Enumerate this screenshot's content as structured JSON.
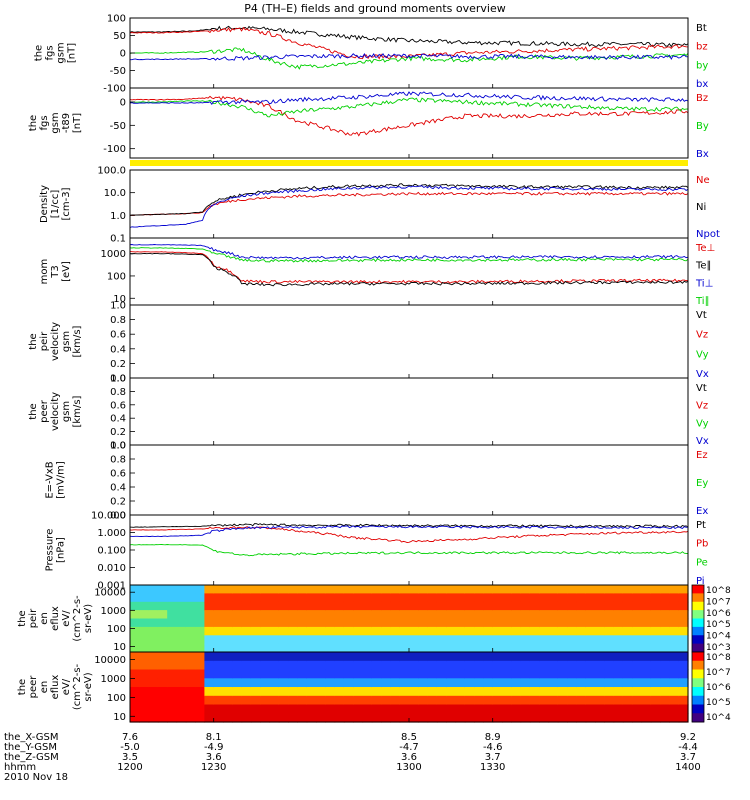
{
  "chart_data": {
    "type": "line",
    "title": "P4 (TH–E) fields and ground moments overview",
    "panels": [
      {
        "id": "fgs",
        "ylabel": [
          "the",
          "fgs",
          "gsm",
          "[nT]"
        ],
        "ticks": [
          "100",
          "50",
          "0",
          "-50",
          "-100"
        ],
        "ylim": [
          -100,
          100
        ],
        "log": false,
        "series": [
          {
            "name": "Bt",
            "color": "#000000",
            "x": [
              1200,
              1210,
              1220,
              1226,
              1230,
              1240,
              1250,
              1260,
              1280,
              1300,
              1320,
              1340,
              1360,
              1380,
              1400
            ],
            "y": [
              60,
              60,
              62,
              65,
              70,
              72,
              68,
              60,
              45,
              35,
              30,
              28,
              25,
              25,
              22
            ]
          },
          {
            "name": "bz",
            "color": "#e00000",
            "x": [
              1200,
              1210,
              1220,
              1226,
              1230,
              1240,
              1250,
              1260,
              1280,
              1300,
              1320,
              1340,
              1360,
              1380,
              1400
            ],
            "y": [
              58,
              58,
              60,
              62,
              65,
              68,
              55,
              30,
              -10,
              -10,
              0,
              5,
              10,
              15,
              20
            ]
          },
          {
            "name": "by",
            "color": "#00d000",
            "x": [
              1200,
              1210,
              1220,
              1226,
              1230,
              1240,
              1250,
              1260,
              1280,
              1300,
              1320,
              1340,
              1360,
              1380,
              1400
            ],
            "y": [
              0,
              0,
              2,
              3,
              5,
              10,
              -20,
              -40,
              -30,
              -15,
              -20,
              -10,
              -15,
              -10,
              -5
            ]
          },
          {
            "name": "bx",
            "color": "#0000d0",
            "x": [
              1200,
              1210,
              1220,
              1226,
              1230,
              1240,
              1250,
              1260,
              1280,
              1300,
              1320,
              1340,
              1360,
              1380,
              1400
            ],
            "y": [
              -18,
              -18,
              -17,
              -17,
              -16,
              -15,
              -12,
              -10,
              -8,
              -8,
              -10,
              -10,
              -12,
              -12,
              -12
            ]
          }
        ]
      },
      {
        "id": "fgs2",
        "ylabel": [
          "the",
          "fgs",
          "gsm",
          "-t89",
          "[nT]"
        ],
        "ticks": [
          "0",
          "-50",
          "-100"
        ],
        "ylim": [
          -120,
          30
        ],
        "log": false,
        "series": [
          {
            "name": "Bz",
            "color": "#e00000",
            "x": [
              1200,
              1210,
              1220,
              1226,
              1230,
              1240,
              1250,
              1260,
              1280,
              1300,
              1320,
              1340,
              1360,
              1380,
              1400
            ],
            "y": [
              5,
              5,
              6,
              8,
              10,
              5,
              -10,
              -40,
              -70,
              -50,
              -30,
              -30,
              -25,
              -25,
              -20
            ]
          },
          {
            "name": "By",
            "color": "#00d000",
            "x": [
              1200,
              1210,
              1220,
              1226,
              1230,
              1240,
              1250,
              1260,
              1280,
              1300,
              1320,
              1340,
              1360,
              1380,
              1400
            ],
            "y": [
              0,
              0,
              2,
              2,
              0,
              -10,
              -30,
              -20,
              -10,
              5,
              0,
              -5,
              -10,
              -15,
              -15
            ]
          },
          {
            "name": "Bx",
            "color": "#0000d0",
            "x": [
              1200,
              1210,
              1220,
              1226,
              1230,
              1240,
              1250,
              1260,
              1280,
              1300,
              1320,
              1340,
              1360,
              1380,
              1400
            ],
            "y": [
              -2,
              -2,
              -2,
              -2,
              0,
              0,
              0,
              5,
              10,
              18,
              15,
              10,
              8,
              5,
              5
            ]
          }
        ]
      },
      {
        "id": "density",
        "ylabel": [
          "Density",
          "[1/cc]",
          "[cm-3]"
        ],
        "ticks": [
          "100.0",
          "10.0",
          "1.0",
          "0.1"
        ],
        "ylim": [
          0.1,
          100
        ],
        "log": true,
        "series": [
          {
            "name": "Ne",
            "color": "#e00000",
            "x": [
              1200,
              1210,
              1220,
              1226,
              1230,
              1240,
              1250,
              1260,
              1280,
              1300,
              1320,
              1340,
              1360,
              1380,
              1400
            ],
            "y": [
              1,
              1.1,
              1.2,
              1.3,
              3,
              5,
              6,
              7,
              8,
              9,
              9,
              9,
              9,
              9,
              9
            ]
          },
          {
            "name": "Ni",
            "color": "#000000",
            "x": [
              1200,
              1210,
              1220,
              1226,
              1230,
              1240,
              1250,
              1260,
              1280,
              1300,
              1320,
              1340,
              1360,
              1380,
              1400
            ],
            "y": [
              1,
              1.1,
              1.2,
              1.4,
              4,
              8,
              12,
              15,
              20,
              22,
              20,
              18,
              18,
              17,
              17
            ]
          },
          {
            "name": "Npot",
            "color": "#0000d0",
            "x": [
              1200,
              1210,
              1220,
              1226,
              1230,
              1240,
              1250,
              1260,
              1280,
              1300,
              1320,
              1340,
              1360,
              1380,
              1400
            ],
            "y": [
              0.3,
              0.35,
              0.4,
              0.6,
              3,
              7,
              10,
              12,
              16,
              18,
              16,
              15,
              15,
              14,
              14
            ]
          }
        ]
      },
      {
        "id": "temp",
        "ylabel": [
          "mom",
          "T3",
          "[eV]"
        ],
        "ticks": [
          "1000",
          "100",
          "10"
        ],
        "ylim": [
          5,
          5000
        ],
        "log": true,
        "series": [
          {
            "name": "Te⊥",
            "color": "#e00000",
            "x": [
              1200,
              1210,
              1220,
              1226,
              1230,
              1240,
              1250,
              1260,
              1280,
              1300,
              1320,
              1340,
              1360,
              1380,
              1400
            ],
            "y": [
              1200,
              1200,
              1100,
              1000,
              300,
              60,
              55,
              55,
              55,
              55,
              55,
              58,
              60,
              62,
              62
            ]
          },
          {
            "name": "Te∥",
            "color": "#000000",
            "x": [
              1200,
              1210,
              1220,
              1226,
              1230,
              1240,
              1250,
              1260,
              1280,
              1300,
              1320,
              1340,
              1360,
              1380,
              1400
            ],
            "y": [
              1000,
              1000,
              950,
              900,
              250,
              45,
              40,
              42,
              45,
              45,
              45,
              47,
              50,
              52,
              52
            ]
          },
          {
            "name": "Ti⊥",
            "color": "#0000d0",
            "x": [
              1200,
              1210,
              1220,
              1226,
              1230,
              1240,
              1250,
              1260,
              1280,
              1300,
              1320,
              1340,
              1360,
              1380,
              1400
            ],
            "y": [
              2500,
              2500,
              2400,
              2300,
              1500,
              700,
              650,
              650,
              680,
              700,
              700,
              700,
              720,
              720,
              720
            ]
          },
          {
            "name": "Ti∥",
            "color": "#00d000",
            "x": [
              1200,
              1210,
              1220,
              1226,
              1230,
              1240,
              1250,
              1260,
              1280,
              1300,
              1320,
              1340,
              1360,
              1380,
              1400
            ],
            "y": [
              1800,
              1800,
              1700,
              1600,
              1000,
              500,
              480,
              480,
              500,
              520,
              520,
              520,
              540,
              540,
              540
            ]
          }
        ]
      },
      {
        "id": "peir",
        "ylabel": [
          "the",
          "peir",
          "velocity",
          "gsm",
          "[km/s]"
        ],
        "ticks": [
          "1.0",
          "0.8",
          "0.6",
          "0.4",
          "0.2",
          "0.0"
        ],
        "ylim": [
          0,
          1
        ],
        "log": false,
        "series": [
          {
            "name": "Vt",
            "color": "#000000",
            "x": [],
            "y": []
          },
          {
            "name": "Vz",
            "color": "#e00000",
            "x": [],
            "y": []
          },
          {
            "name": "Vy",
            "color": "#00d000",
            "x": [],
            "y": []
          },
          {
            "name": "Vx",
            "color": "#0000d0",
            "x": [],
            "y": []
          }
        ]
      },
      {
        "id": "peer",
        "ylabel": [
          "the",
          "peer",
          "velocity",
          "gsm",
          "[km/s]"
        ],
        "ticks": [
          "1.0",
          "0.8",
          "0.6",
          "0.4",
          "0.2",
          "0.0"
        ],
        "ylim": [
          0,
          1
        ],
        "log": false,
        "series": [
          {
            "name": "Vt",
            "color": "#000000",
            "x": [],
            "y": []
          },
          {
            "name": "Vz",
            "color": "#e00000",
            "x": [],
            "y": []
          },
          {
            "name": "Vy",
            "color": "#00d000",
            "x": [],
            "y": []
          },
          {
            "name": "Vx",
            "color": "#0000d0",
            "x": [],
            "y": []
          }
        ]
      },
      {
        "id": "efield",
        "ylabel": [
          "E=-VxB",
          "[mV/m]"
        ],
        "ticks": [
          "1.0",
          "0.8",
          "0.6",
          "0.4",
          "0.2",
          "0.0"
        ],
        "ylim": [
          0,
          1
        ],
        "log": false,
        "series": [
          {
            "name": "Ez",
            "color": "#e00000",
            "x": [],
            "y": []
          },
          {
            "name": "Ey",
            "color": "#00d000",
            "x": [],
            "y": []
          },
          {
            "name": "Ex",
            "color": "#0000d0",
            "x": [],
            "y": []
          }
        ]
      },
      {
        "id": "pressure",
        "ylabel": [
          "Pressure",
          "[nPa]"
        ],
        "ticks": [
          "10.000",
          "1.000",
          "0.100",
          "0.010",
          "0.001"
        ],
        "ylim": [
          0.001,
          10
        ],
        "log": true,
        "series": [
          {
            "name": "Pt",
            "color": "#000000",
            "x": [
              1200,
              1210,
              1220,
              1226,
              1230,
              1240,
              1250,
              1260,
              1280,
              1300,
              1320,
              1340,
              1360,
              1380,
              1400
            ],
            "y": [
              2,
              2.1,
              2.2,
              2.3,
              2.5,
              2.8,
              2.8,
              2.6,
              2.6,
              2.5,
              2.4,
              2.4,
              2.3,
              2.3,
              2.3
            ]
          },
          {
            "name": "Pb",
            "color": "#e00000",
            "x": [
              1200,
              1210,
              1220,
              1226,
              1230,
              1240,
              1250,
              1260,
              1280,
              1300,
              1320,
              1340,
              1360,
              1380,
              1400
            ],
            "y": [
              1.4,
              1.4,
              1.5,
              1.6,
              1.8,
              2,
              1.8,
              1.2,
              0.5,
              0.3,
              0.4,
              0.6,
              0.8,
              1.0,
              1.1
            ]
          },
          {
            "name": "Pe",
            "color": "#00d000",
            "x": [
              1200,
              1210,
              1220,
              1226,
              1230,
              1240,
              1250,
              1260,
              1280,
              1300,
              1320,
              1340,
              1360,
              1380,
              1400
            ],
            "y": [
              0.2,
              0.2,
              0.2,
              0.19,
              0.09,
              0.05,
              0.055,
              0.06,
              0.065,
              0.07,
              0.07,
              0.07,
              0.07,
              0.07,
              0.07
            ]
          },
          {
            "name": "Pi",
            "color": "#0000d0",
            "x": [
              1200,
              1210,
              1220,
              1226,
              1230,
              1240,
              1250,
              1260,
              1280,
              1300,
              1320,
              1340,
              1360,
              1380,
              1400
            ],
            "y": [
              0.6,
              0.6,
              0.65,
              0.7,
              1.2,
              1.8,
              1.9,
              2,
              2.1,
              2.1,
              2.0,
              2.0,
              1.9,
              1.9,
              1.9
            ]
          }
        ]
      },
      {
        "id": "peir_spec",
        "type": "heatmap",
        "ylabel": [
          "the",
          "peir",
          "en",
          "eflux",
          "eV/",
          "(cm^2-s-",
          "sr-eV)"
        ],
        "ticks": [
          "10000",
          "1000",
          "100",
          "10"
        ],
        "ylim": [
          5,
          25000
        ],
        "log": true,
        "colorbar": [
          "10^8",
          "10^7",
          "10^6",
          "10^5",
          "10^4",
          "10^3"
        ]
      },
      {
        "id": "peer_spec",
        "type": "heatmap",
        "ylabel": [
          "the",
          "peer",
          "en",
          "eflux",
          "eV/",
          "(cm^2-s-",
          "sr-eV)"
        ],
        "ticks": [
          "10000",
          "1000",
          "100",
          "10"
        ],
        "ylim": [
          5,
          25000
        ],
        "log": true,
        "colorbar": [
          "10^8",
          "10^7",
          "10^6",
          "10^5",
          "10^4"
        ]
      }
    ],
    "xaxis": {
      "xlim": [
        1200,
        1400
      ],
      "tick_x": [
        1200,
        1230,
        1300,
        1330,
        1400
      ],
      "rows": [
        {
          "label": "the_X-GSM",
          "values": [
            "7.6",
            "8.1",
            "8.5",
            "8.9",
            "9.2"
          ]
        },
        {
          "label": "the_Y-GSM",
          "values": [
            "-5.0",
            "-4.9",
            "-4.7",
            "-4.6",
            "-4.4"
          ]
        },
        {
          "label": "the_Z-GSM",
          "values": [
            "3.5",
            "3.6",
            "3.6",
            "3.7",
            "3.7"
          ]
        },
        {
          "label": "hhmm",
          "values": [
            "1200",
            "1230",
            "1300",
            "1330",
            "1400"
          ]
        }
      ],
      "date": "2010 Nov 18"
    }
  }
}
